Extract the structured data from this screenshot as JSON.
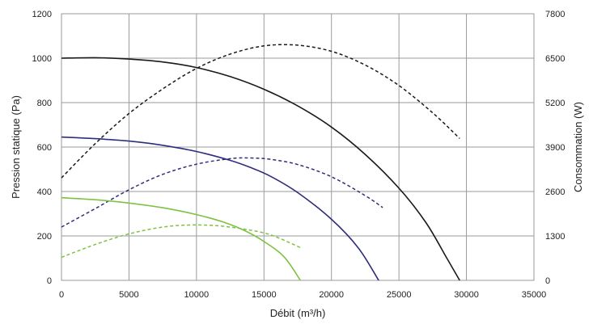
{
  "chart_data": {
    "type": "line",
    "title": "",
    "xlabel": "Débit (m³/h)",
    "ylabel_left": "Pression statique (Pa)",
    "ylabel_right": "Consommation (W)",
    "xlim": [
      0,
      35000
    ],
    "ylim_left": [
      0,
      1200
    ],
    "ylim_right": [
      0,
      7800
    ],
    "x_ticks": [
      0,
      5000,
      10000,
      15000,
      20000,
      25000,
      30000,
      35000
    ],
    "y_ticks_left": [
      0,
      200,
      400,
      600,
      800,
      1000,
      1200
    ],
    "y_ticks_right": [
      0,
      1300,
      2600,
      3900,
      5200,
      6500,
      7800
    ],
    "grid": true,
    "legend": "none",
    "series": [
      {
        "axis": "left",
        "color": "#1a1a1a",
        "dashed": false,
        "points": [
          [
            0,
            1000
          ],
          [
            2500,
            1002
          ],
          [
            5000,
            996
          ],
          [
            7500,
            983
          ],
          [
            10000,
            958
          ],
          [
            12500,
            917
          ],
          [
            15000,
            860
          ],
          [
            17500,
            785
          ],
          [
            20000,
            690
          ],
          [
            22500,
            567
          ],
          [
            25000,
            415
          ],
          [
            27000,
            260
          ],
          [
            28500,
            105
          ],
          [
            29500,
            0
          ]
        ]
      },
      {
        "axis": "right",
        "color": "#1a1a1a",
        "dashed": false,
        "dashed_style": true,
        "points": [
          [
            0,
            3000
          ],
          [
            2500,
            4000
          ],
          [
            5000,
            4880
          ],
          [
            7500,
            5600
          ],
          [
            10000,
            6200
          ],
          [
            12500,
            6620
          ],
          [
            15000,
            6860
          ],
          [
            17500,
            6880
          ],
          [
            20000,
            6700
          ],
          [
            22500,
            6300
          ],
          [
            25000,
            5700
          ],
          [
            27500,
            4900
          ],
          [
            29500,
            4150
          ]
        ]
      },
      {
        "axis": "left",
        "color": "#2e2e7e",
        "dashed": false,
        "points": [
          [
            0,
            645
          ],
          [
            2500,
            638
          ],
          [
            5000,
            627
          ],
          [
            7500,
            608
          ],
          [
            10000,
            580
          ],
          [
            12500,
            540
          ],
          [
            14000,
            508
          ],
          [
            15500,
            468
          ],
          [
            17500,
            395
          ],
          [
            20000,
            275
          ],
          [
            22000,
            145
          ],
          [
            23500,
            0
          ]
        ]
      },
      {
        "axis": "right",
        "color": "#2e2e7e",
        "dashed": false,
        "dashed_style": true,
        "points": [
          [
            0,
            1560
          ],
          [
            2500,
            2100
          ],
          [
            5000,
            2650
          ],
          [
            7500,
            3100
          ],
          [
            10000,
            3400
          ],
          [
            12500,
            3560
          ],
          [
            14000,
            3580
          ],
          [
            15500,
            3540
          ],
          [
            17500,
            3390
          ],
          [
            20000,
            3030
          ],
          [
            22500,
            2480
          ],
          [
            23800,
            2130
          ]
        ]
      },
      {
        "axis": "left",
        "color": "#7dc242",
        "dashed": false,
        "points": [
          [
            0,
            372
          ],
          [
            2500,
            363
          ],
          [
            5000,
            348
          ],
          [
            7500,
            327
          ],
          [
            10000,
            296
          ],
          [
            12000,
            262
          ],
          [
            13500,
            226
          ],
          [
            15000,
            175
          ],
          [
            16500,
            105
          ],
          [
            17700,
            0
          ]
        ]
      },
      {
        "axis": "right",
        "color": "#7dc242",
        "dashed": false,
        "dashed_style": true,
        "points": [
          [
            0,
            675
          ],
          [
            2500,
            1050
          ],
          [
            5000,
            1360
          ],
          [
            7500,
            1560
          ],
          [
            9500,
            1620
          ],
          [
            11500,
            1600
          ],
          [
            13500,
            1500
          ],
          [
            15500,
            1330
          ],
          [
            17800,
            940
          ]
        ]
      }
    ]
  }
}
